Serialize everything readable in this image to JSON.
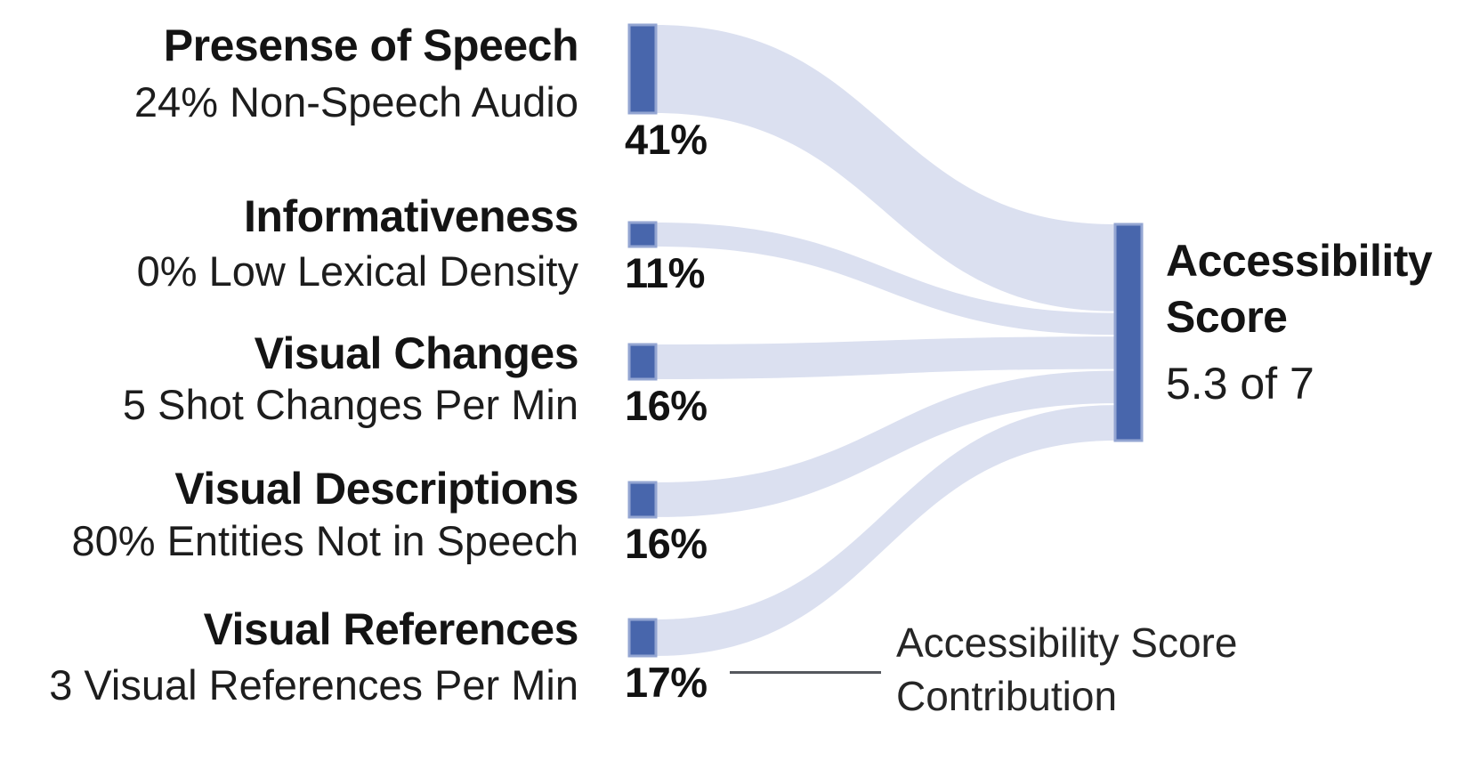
{
  "chart_data": {
    "type": "sankey",
    "unit": "%",
    "sources": [
      {
        "title": "Presense of Speech",
        "subtitle": "24% Non-Speech Audio",
        "value": 41,
        "label": "41%"
      },
      {
        "title": "Informativeness",
        "subtitle": "0% Low Lexical Density",
        "value": 11,
        "label": "11%"
      },
      {
        "title": "Visual Changes",
        "subtitle": "5 Shot Changes Per Min",
        "value": 16,
        "label": "16%"
      },
      {
        "title": "Visual Descriptions",
        "subtitle": "80% Entities Not in Speech",
        "value": 16,
        "label": "16%"
      },
      {
        "title": "Visual References",
        "subtitle": "3 Visual References Per Min",
        "value": 17,
        "label": "17%"
      }
    ],
    "target": {
      "title": "Accessibility Score",
      "score_label": "5.3 of 7",
      "score_value": 5.3,
      "score_max": 7
    },
    "annotation": {
      "label": "Accessibility Score Contribution"
    },
    "colors": {
      "node": "#4866AC",
      "node_stroke": "#93A5D2",
      "flow": "#DBE0F0",
      "text": "#141414",
      "annotation_line": "#55585e"
    },
    "layout_hints": {
      "orientation": "left-to-right",
      "left_nodes": 5,
      "right_nodes": 1,
      "legend": "none",
      "grid": false
    }
  }
}
